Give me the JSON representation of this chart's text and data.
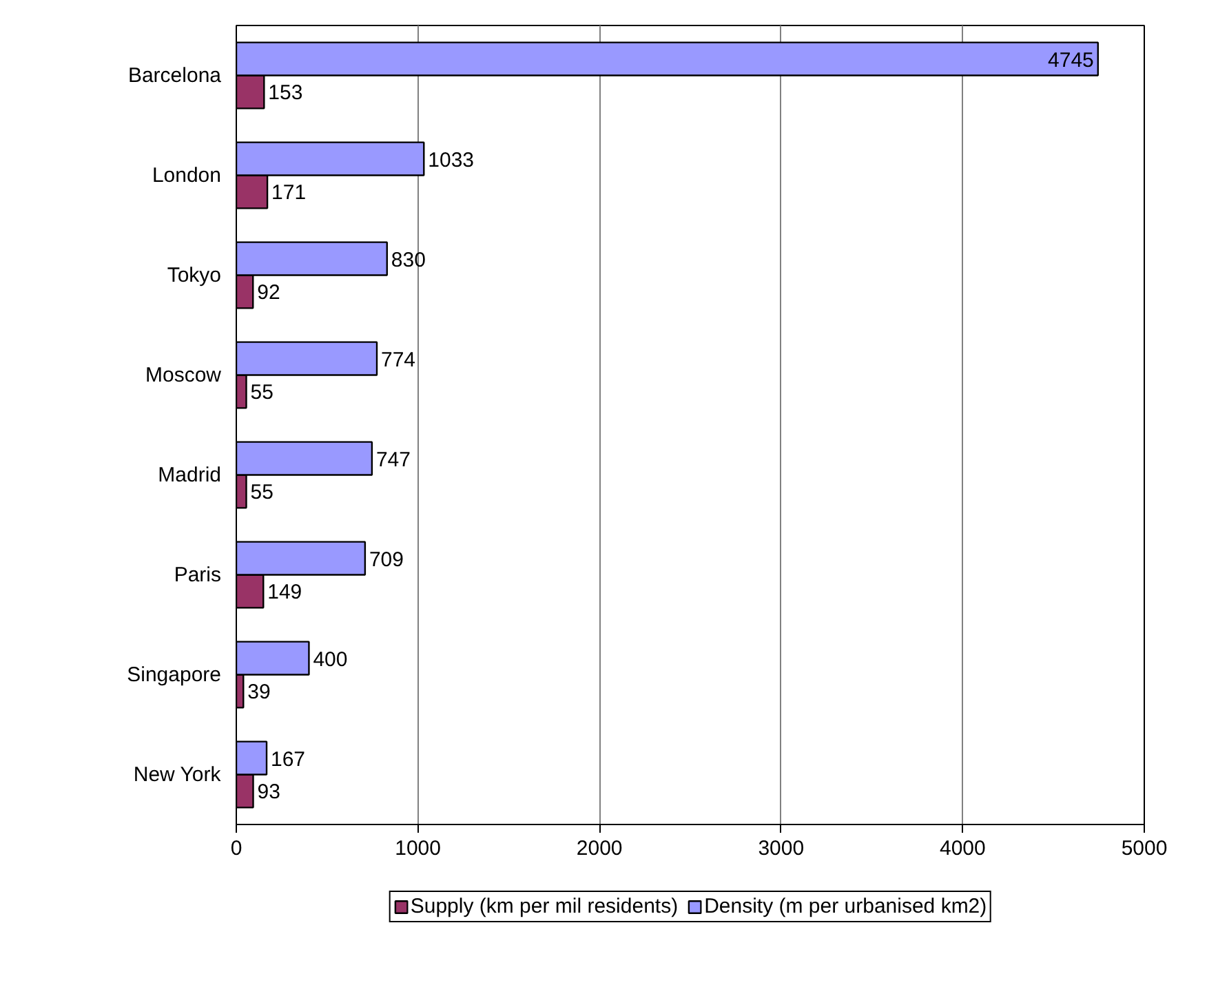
{
  "chart_data": {
    "type": "bar",
    "orientation": "horizontal",
    "categories": [
      "Barcelona",
      "London",
      "Tokyo",
      "Moscow",
      "Madrid",
      "Paris",
      "Singapore",
      "New York"
    ],
    "series": [
      {
        "name": "Supply (km per mil residents)",
        "color": "#993366",
        "values": [
          153,
          171,
          92,
          55,
          55,
          149,
          39,
          93
        ]
      },
      {
        "name": "Density (m per urbanised km2)",
        "color": "#9999ff",
        "values": [
          4745,
          1033,
          830,
          774,
          747,
          709,
          400,
          167
        ]
      }
    ],
    "xlim": [
      0,
      5000
    ],
    "xticks": [
      0,
      1000,
      2000,
      3000,
      4000,
      5000
    ],
    "grid": "x",
    "legend": "bottom",
    "data_labels": true
  }
}
